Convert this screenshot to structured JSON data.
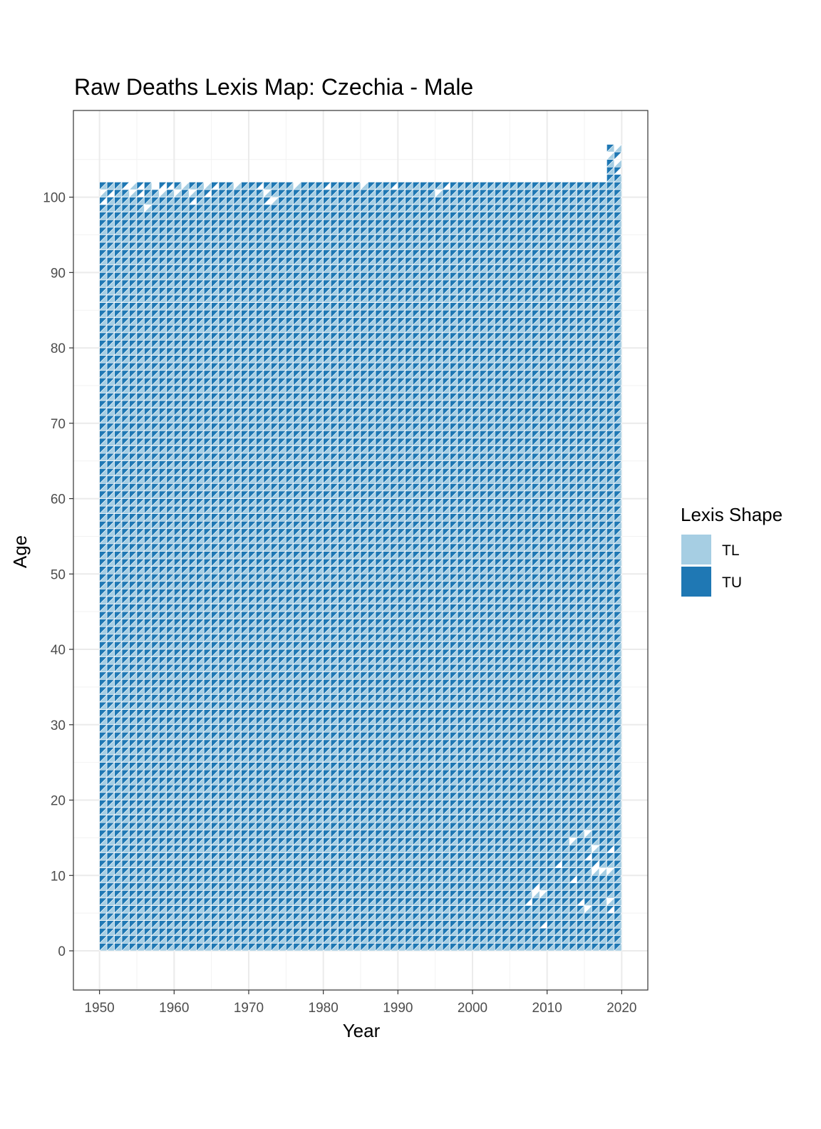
{
  "chart_data": {
    "type": "heatmap",
    "subtype": "lexis-map-triangles",
    "title": "Raw Deaths Lexis Map: Czechia - Male",
    "xlabel": "Year",
    "ylabel": "Age",
    "xlim": [
      1946.5,
      2023.5
    ],
    "ylim": [
      -5.2,
      111.5
    ],
    "x_ticks": [
      1950,
      1960,
      1970,
      1980,
      1990,
      2000,
      2010,
      2020
    ],
    "x_tick_labels": [
      "1950",
      "1960",
      "1970",
      "1980",
      "1990",
      "2000",
      "2010",
      "2020"
    ],
    "y_ticks": [
      0,
      10,
      20,
      30,
      40,
      50,
      60,
      70,
      80,
      90,
      100
    ],
    "y_tick_labels": [
      "0",
      "10",
      "20",
      "30",
      "40",
      "50",
      "60",
      "70",
      "80",
      "90",
      "100"
    ],
    "grid": true,
    "theme": "bw",
    "legend": {
      "title": "Lexis Shape",
      "position": "right",
      "entries": [
        {
          "name": "TL",
          "color": "#a6cee3"
        },
        {
          "name": "TU",
          "color": "#1f78b4"
        }
      ]
    },
    "series": [
      {
        "name": "TL",
        "color": "#a6cee3"
      },
      {
        "name": "TU",
        "color": "#1f78b4"
      }
    ],
    "cells": {
      "year_range": [
        1950,
        2019
      ],
      "age_range": [
        0,
        101
      ],
      "extension_after_2018": {
        "years": [
          2018,
          2019
        ],
        "max_age": 106
      },
      "note": "each (year, age) unit square split into lower triangle TL and upper triangle TU",
      "missing": [
        [
          1950,
          100,
          "TU"
        ],
        [
          1950,
          99,
          "TL"
        ],
        [
          1951,
          100,
          "TL"
        ],
        [
          1953,
          101,
          "TL"
        ],
        [
          1954,
          101,
          "TU"
        ],
        [
          1955,
          101,
          "TL"
        ],
        [
          1955,
          100,
          "TL"
        ],
        [
          1954,
          100,
          "TU"
        ],
        [
          1957,
          101,
          "TL"
        ],
        [
          1957,
          101,
          "TU"
        ],
        [
          1958,
          101,
          "TL"
        ],
        [
          1956,
          98,
          "TU"
        ],
        [
          1958,
          100,
          "TU"
        ],
        [
          1959,
          101,
          "TL"
        ],
        [
          1960,
          100,
          "TU"
        ],
        [
          1961,
          101,
          "TU"
        ],
        [
          1962,
          99,
          "TL"
        ],
        [
          1962,
          100,
          "TU"
        ],
        [
          1964,
          101,
          "TU"
        ],
        [
          1964,
          100,
          "TL"
        ],
        [
          1965,
          101,
          "TL"
        ],
        [
          1968,
          101,
          "TU"
        ],
        [
          1971,
          101,
          "TL"
        ],
        [
          1972,
          100,
          "TU"
        ],
        [
          1972,
          99,
          "TL"
        ],
        [
          1973,
          99,
          "TU"
        ],
        [
          1976,
          101,
          "TU"
        ],
        [
          1980,
          101,
          "TL"
        ],
        [
          1985,
          101,
          "TU"
        ],
        [
          1989,
          101,
          "TL"
        ],
        [
          1995,
          100,
          "TU"
        ],
        [
          1996,
          101,
          "TL"
        ],
        [
          2007,
          6,
          "TL"
        ],
        [
          2008,
          7,
          "TU"
        ],
        [
          2008,
          8,
          "TL"
        ],
        [
          2009,
          7,
          "TU"
        ],
        [
          2009,
          3,
          "TL"
        ],
        [
          2011,
          11,
          "TL"
        ],
        [
          2013,
          9,
          "TL"
        ],
        [
          2013,
          14,
          "TU"
        ],
        [
          2014,
          6,
          "TL"
        ],
        [
          2015,
          5,
          "TU"
        ],
        [
          2015,
          12,
          "TL"
        ],
        [
          2015,
          15,
          "TU"
        ],
        [
          2016,
          11,
          "TL"
        ],
        [
          2016,
          10,
          "TU"
        ],
        [
          2016,
          13,
          "TU"
        ],
        [
          2017,
          10,
          "TU"
        ],
        [
          2018,
          13,
          "TL"
        ],
        [
          2018,
          5,
          "TL"
        ],
        [
          2018,
          6,
          "TU"
        ],
        [
          2018,
          10,
          "TU"
        ],
        [
          2018,
          105,
          "TU"
        ],
        [
          2019,
          106,
          "TU"
        ],
        [
          2019,
          105,
          "TL"
        ],
        [
          2019,
          104,
          "TU"
        ],
        [
          2019,
          103,
          "TL"
        ]
      ]
    }
  }
}
